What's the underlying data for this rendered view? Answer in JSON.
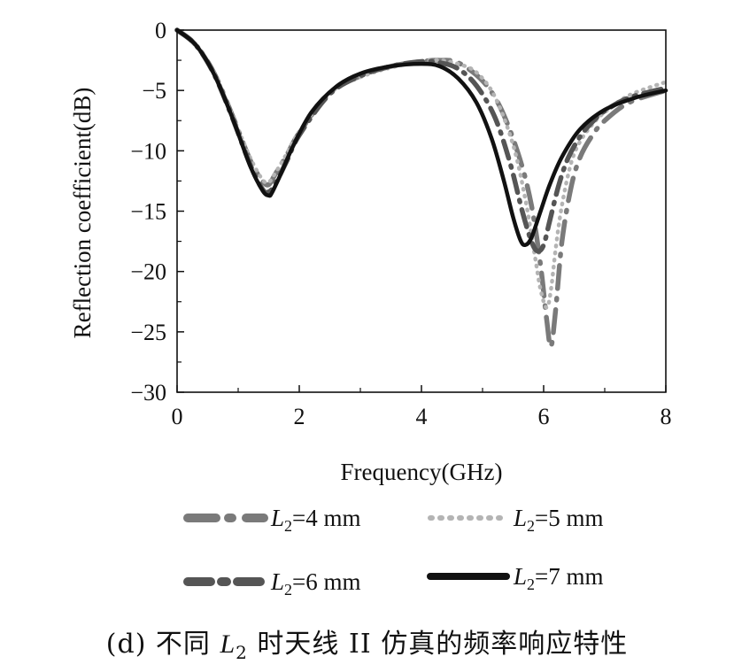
{
  "chart_data": {
    "type": "line",
    "xlabel": "Frequency(GHz)",
    "ylabel": "Reflection coefficient(dB)",
    "xlim": [
      0,
      8
    ],
    "ylim": [
      -30,
      0
    ],
    "xticks": [
      "0",
      "2",
      "4",
      "6",
      "8"
    ],
    "yticks": [
      "0",
      "−5",
      "−10",
      "−15",
      "−20",
      "−25",
      "−30"
    ],
    "grid": false,
    "legend_position": "bottom",
    "series": [
      {
        "name_prefix": "L",
        "name_sub": "2",
        "name_suffix": "=4 mm",
        "color": "#7a7a7a",
        "dash": "long-dash-dot",
        "x": [
          0,
          0.3,
          0.6,
          0.9,
          1.2,
          1.4,
          1.5,
          1.6,
          1.8,
          2.0,
          2.5,
          3.0,
          3.5,
          4.0,
          4.3,
          4.6,
          5.0,
          5.3,
          5.6,
          5.8,
          5.95,
          6.05,
          6.12,
          6.2,
          6.3,
          6.45,
          6.6,
          6.8,
          7.0,
          7.4,
          8.0
        ],
        "y": [
          0,
          -1.2,
          -3.5,
          -7,
          -10.8,
          -12.5,
          -12.8,
          -12,
          -10.3,
          -8.5,
          -5.2,
          -3.8,
          -3.0,
          -2.6,
          -2.5,
          -2.7,
          -4.2,
          -6.5,
          -10.5,
          -14.5,
          -19.5,
          -24,
          -26.2,
          -23,
          -17.5,
          -13,
          -10.5,
          -8.7,
          -7.5,
          -6.0,
          -5.0
        ]
      },
      {
        "name_prefix": "L",
        "name_sub": "2",
        "name_suffix": "=5 mm",
        "color": "#b4b4b4",
        "dash": "dotted",
        "x": [
          0,
          0.3,
          0.6,
          0.9,
          1.2,
          1.4,
          1.5,
          1.6,
          1.8,
          2.0,
          2.5,
          3.0,
          3.5,
          4.0,
          4.3,
          4.6,
          4.9,
          5.2,
          5.5,
          5.7,
          5.85,
          5.95,
          6.05,
          6.12,
          6.2,
          6.3,
          6.45,
          6.6,
          6.8,
          7.0,
          7.4,
          8.0
        ],
        "y": [
          0,
          -1.2,
          -3.5,
          -7,
          -10.6,
          -12.4,
          -12.6,
          -11.9,
          -10.2,
          -8.4,
          -5.2,
          -3.9,
          -3.1,
          -2.6,
          -2.5,
          -2.8,
          -3.5,
          -5.5,
          -9.5,
          -14,
          -18.5,
          -21.5,
          -23,
          -21.5,
          -18,
          -14.5,
          -11,
          -9.2,
          -7.8,
          -6.8,
          -5.4,
          -4.3
        ]
      },
      {
        "name_prefix": "L",
        "name_sub": "2",
        "name_suffix": "=6 mm",
        "color": "#555555",
        "dash": "dash-dot",
        "x": [
          0,
          0.3,
          0.6,
          0.9,
          1.2,
          1.4,
          1.5,
          1.6,
          1.8,
          2.0,
          2.5,
          3.0,
          3.5,
          4.0,
          4.3,
          4.6,
          4.9,
          5.2,
          5.45,
          5.65,
          5.8,
          5.9,
          6.0,
          6.1,
          6.25,
          6.4,
          6.6,
          6.8,
          7.0,
          7.4,
          8.0
        ],
        "y": [
          0,
          -1.2,
          -3.6,
          -7.2,
          -11.2,
          -13.2,
          -13.4,
          -12.8,
          -10.8,
          -8.7,
          -5.3,
          -3.8,
          -3.0,
          -2.6,
          -2.7,
          -3.2,
          -4.6,
          -7.2,
          -11,
          -15,
          -17.5,
          -18.3,
          -17.8,
          -15.8,
          -12.8,
          -10.6,
          -8.8,
          -7.6,
          -6.7,
          -5.6,
          -4.8
        ]
      },
      {
        "name_prefix": "L",
        "name_sub": "2",
        "name_suffix": "=7 mm",
        "color": "#111111",
        "dash": "solid",
        "x": [
          0,
          0.3,
          0.6,
          0.9,
          1.2,
          1.4,
          1.5,
          1.55,
          1.7,
          1.9,
          2.2,
          2.6,
          3.0,
          3.5,
          4.0,
          4.3,
          4.6,
          4.9,
          5.15,
          5.35,
          5.5,
          5.62,
          5.7,
          5.8,
          5.95,
          6.1,
          6.3,
          6.6,
          7.0,
          7.5,
          8.0
        ],
        "y": [
          0,
          -1.2,
          -3.6,
          -7.2,
          -11.3,
          -13.3,
          -13.7,
          -13.5,
          -11.9,
          -9.6,
          -6.8,
          -4.7,
          -3.6,
          -3.0,
          -2.8,
          -3.0,
          -4.0,
          -6.0,
          -9.0,
          -12.5,
          -15.5,
          -17.4,
          -17.8,
          -17.2,
          -15.0,
          -12.8,
          -10.5,
          -8.2,
          -6.6,
          -5.6,
          -5.0
        ]
      }
    ]
  },
  "caption": {
    "prefix": "(d) 不同 ",
    "var": "L",
    "sub": "2",
    "suffix": " 时天线 II 仿真的频率响应特性"
  }
}
